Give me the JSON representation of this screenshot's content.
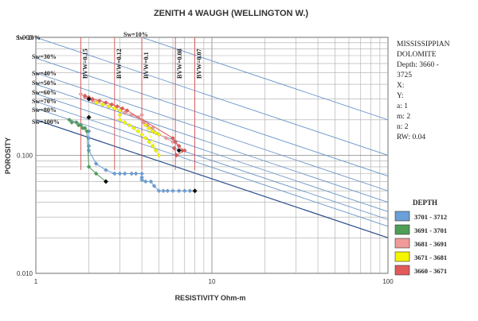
{
  "chart_data": {
    "type": "scatter",
    "title": "ZENITH 4 WAUGH (WELLINGTON W.)",
    "xlabel": "RESISTIVITY Ohm-m",
    "ylabel": "POROSITY",
    "x_scale": "log",
    "y_scale": "log",
    "xlim": [
      1,
      100
    ],
    "ylim": [
      0.01,
      1.0
    ],
    "x_ticks": [
      "1",
      "10",
      "100"
    ],
    "y_ticks": [
      "1.000",
      "0.100",
      "0.010"
    ],
    "grid": true,
    "legend_position": "right",
    "legend_title": "DEPTH",
    "info_lines": [
      "MISSISSIPPIAN",
      "DOLOMITE",
      "Depth: 3660 -",
      "3725",
      "X:",
      "Y:",
      "a: 1",
      "m: 2",
      "n: 2",
      "RW: 0.04"
    ],
    "sw_lines": [
      {
        "label": "Sw=20%",
        "sw": 0.2
      },
      {
        "label": "Sw=10%",
        "sw": 0.1
      },
      {
        "label": "Sw=30%",
        "sw": 0.3
      },
      {
        "label": "Sw=40%",
        "sw": 0.4
      },
      {
        "label": "Sw=50%",
        "sw": 0.5
      },
      {
        "label": "Sw=60%",
        "sw": 0.6
      },
      {
        "label": "Sw=70%",
        "sw": 0.7
      },
      {
        "label": "Sw=80%",
        "sw": 0.8
      },
      {
        "label": "Sw=100%",
        "sw": 1.0
      }
    ],
    "bvw_lines": [
      {
        "label": "BVW=0.15",
        "bvw": 0.15
      },
      {
        "label": "BVW=0.12",
        "bvw": 0.12
      },
      {
        "label": "BVW=0.1",
        "bvw": 0.1
      },
      {
        "label": "BVW=0.08",
        "bvw": 0.08
      },
      {
        "label": "BVW=0.07",
        "bvw": 0.07
      }
    ],
    "series": [
      {
        "name": "3701 - 3712",
        "color": "#6a9fd8",
        "points": [
          [
            2.0,
            0.16
          ],
          [
            2.0,
            0.14
          ],
          [
            2.0,
            0.12
          ],
          [
            2.0,
            0.11
          ],
          [
            2.2,
            0.085
          ],
          [
            2.5,
            0.075
          ],
          [
            2.8,
            0.07
          ],
          [
            3.0,
            0.07
          ],
          [
            3.2,
            0.07
          ],
          [
            3.5,
            0.07
          ],
          [
            3.7,
            0.07
          ],
          [
            4.0,
            0.07
          ],
          [
            4.0,
            0.065
          ],
          [
            4.0,
            0.062
          ],
          [
            4.2,
            0.06
          ],
          [
            4.5,
            0.06
          ],
          [
            4.7,
            0.055
          ],
          [
            5.0,
            0.05
          ],
          [
            5.3,
            0.05
          ],
          [
            5.6,
            0.05
          ],
          [
            6.0,
            0.05
          ],
          [
            6.5,
            0.05
          ],
          [
            7.0,
            0.05
          ],
          [
            7.5,
            0.05
          ],
          [
            8.0,
            0.05
          ]
        ]
      },
      {
        "name": "3691 - 3701",
        "color": "#4e9e58",
        "points": [
          [
            1.55,
            0.2
          ],
          [
            1.6,
            0.19
          ],
          [
            1.7,
            0.19
          ],
          [
            1.75,
            0.18
          ],
          [
            1.8,
            0.18
          ],
          [
            1.85,
            0.17
          ],
          [
            1.9,
            0.17
          ],
          [
            1.95,
            0.16
          ],
          [
            2.0,
            0.08
          ],
          [
            2.2,
            0.07
          ],
          [
            2.5,
            0.06
          ]
        ]
      },
      {
        "name": "3681 - 3691",
        "color": "#f09a9a",
        "points": [
          [
            1.8,
            0.33
          ],
          [
            1.9,
            0.31
          ],
          [
            2.0,
            0.3
          ],
          [
            2.1,
            0.29
          ],
          [
            2.2,
            0.28
          ],
          [
            2.4,
            0.27
          ],
          [
            2.6,
            0.26
          ],
          [
            2.8,
            0.25
          ],
          [
            3.0,
            0.24
          ],
          [
            3.2,
            0.23
          ],
          [
            3.5,
            0.22
          ],
          [
            3.8,
            0.21
          ],
          [
            4.0,
            0.22
          ],
          [
            4.0,
            0.2
          ],
          [
            4.1,
            0.19
          ],
          [
            4.3,
            0.18
          ],
          [
            4.6,
            0.17
          ],
          [
            5.0,
            0.15
          ],
          [
            5.5,
            0.14
          ],
          [
            6.0,
            0.13
          ],
          [
            6.5,
            0.12
          ]
        ]
      },
      {
        "name": "3671 - 3681",
        "color": "#f5f500",
        "points": [
          [
            2.2,
            0.28
          ],
          [
            2.4,
            0.27
          ],
          [
            2.6,
            0.26
          ],
          [
            2.8,
            0.25
          ],
          [
            3.0,
            0.24
          ],
          [
            3.0,
            0.22
          ],
          [
            3.0,
            0.2
          ],
          [
            3.2,
            0.19
          ],
          [
            3.4,
            0.18
          ],
          [
            3.6,
            0.17
          ],
          [
            3.8,
            0.16
          ],
          [
            4.0,
            0.15
          ],
          [
            4.2,
            0.14
          ],
          [
            4.4,
            0.13
          ],
          [
            4.6,
            0.12
          ],
          [
            4.8,
            0.11
          ],
          [
            5.0,
            0.1
          ],
          [
            4.2,
            0.18
          ],
          [
            4.4,
            0.17
          ],
          [
            4.6,
            0.16
          ],
          [
            4.8,
            0.155
          ],
          [
            5.0,
            0.15
          ]
        ]
      },
      {
        "name": "3660 - 3671",
        "color": "#e05a5a",
        "points": [
          [
            1.9,
            0.32
          ],
          [
            2.0,
            0.31
          ],
          [
            2.1,
            0.3
          ],
          [
            2.3,
            0.29
          ],
          [
            2.5,
            0.28
          ],
          [
            2.7,
            0.27
          ],
          [
            2.9,
            0.26
          ],
          [
            3.1,
            0.25
          ],
          [
            3.3,
            0.24
          ],
          [
            6.0,
            0.14
          ],
          [
            6.2,
            0.13
          ],
          [
            6.5,
            0.12
          ],
          [
            6.8,
            0.11
          ],
          [
            7.0,
            0.11
          ],
          [
            6.3,
            0.1
          ],
          [
            6.1,
            0.115
          ]
        ]
      }
    ],
    "markers": [
      [
        2.0,
        0.21
      ],
      [
        2.0,
        0.3
      ],
      [
        2.5,
        0.06
      ],
      [
        8.0,
        0.05
      ],
      [
        6.5,
        0.11
      ]
    ]
  }
}
